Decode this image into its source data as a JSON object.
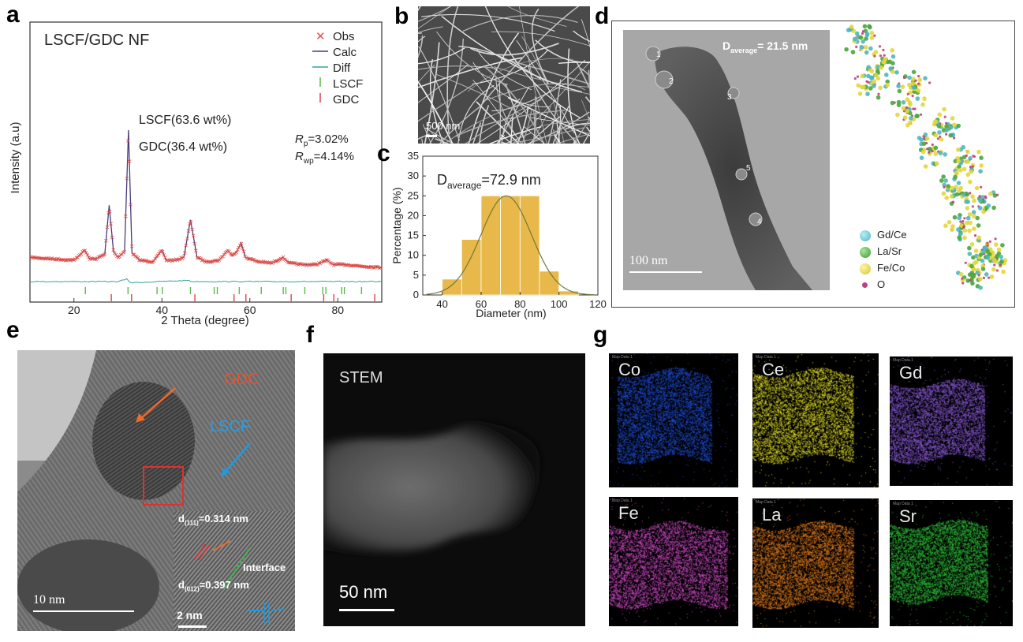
{
  "panels": {
    "a": "a",
    "b": "b",
    "c": "c",
    "d": "d",
    "e": "e",
    "f": "f",
    "g": "g"
  },
  "panel_a": {
    "sample_title": "LSCF/GDC NF",
    "legend": [
      "Obs",
      "Calc",
      "Diff",
      "LSCF",
      "GDC"
    ],
    "annotation_lscf": "LSCF(63.6 wt%)",
    "annotation_gdc": "GDC(36.4 wt%)",
    "rp_symbol": "R",
    "rp_sub": "p",
    "rp_value": "=3.02%",
    "rwp_symbol": "R",
    "rwp_sub": "wp",
    "rwp_value": "=4.14%",
    "colors": {
      "obs": "#e2504a",
      "calc": "#4a3c7c",
      "diff": "#35a39c",
      "lscf": "#5bb84b",
      "gdc": "#e0414f"
    }
  },
  "panel_b": {
    "scale_bar": "500 nm"
  },
  "panel_c": {
    "d_prefix": "D",
    "d_sub": "average",
    "d_value": "=72.9 nm"
  },
  "panel_d": {
    "d_prefix": "D",
    "d_sub": "average",
    "d_value": "= 21.5 nm",
    "scale_bar": "100 nm",
    "markers": [
      "1",
      "2",
      "3",
      "4",
      "5"
    ],
    "atom_legend": [
      {
        "label": "Gd/Ce",
        "color": "#4fb6c4"
      },
      {
        "label": "La/Sr",
        "color": "#4aa63d"
      },
      {
        "label": "Fe/Co",
        "color": "#e3d63a"
      },
      {
        "label": "O",
        "color": "#c0407a"
      }
    ]
  },
  "panel_e": {
    "label_gdc": "GDC",
    "label_lscf": "LSCF",
    "scale_bar": "10 nm",
    "inset_scale_bar": "2 nm",
    "d111_prefix": "d",
    "d111_sub": "(111)",
    "d111_value": "=0.314 nm",
    "d012_prefix": "d",
    "d012_sub": "(012)",
    "d012_value": "=0.397 nm",
    "interface": "Interface"
  },
  "panel_f": {
    "label": "STEM",
    "scale_bar": "50 nm"
  },
  "panel_g": {
    "tiles": [
      {
        "element": "Co",
        "color": "#1f4fd8"
      },
      {
        "element": "Ce",
        "color": "#e6e22a"
      },
      {
        "element": "Gd",
        "color": "#8a5ad6"
      },
      {
        "element": "Fe",
        "color": "#d84fd0"
      },
      {
        "element": "La",
        "color": "#e8801e"
      },
      {
        "element": "Sr",
        "color": "#2fc43a"
      }
    ],
    "tile_caption": "Map Data 1"
  },
  "chart_data": [
    {
      "type": "line",
      "panel": "a",
      "xlabel": "2 Theta (degree)",
      "ylabel": "Intensity (a.u)",
      "xlim": [
        10,
        90
      ],
      "xticks": [
        20,
        40,
        60,
        80
      ],
      "series": [
        {
          "name": "Calc",
          "x": [
            10,
            15,
            20,
            22.5,
            23.5,
            25,
            27,
            28,
            29,
            30,
            31.5,
            32.4,
            33.2,
            35,
            38,
            40,
            41,
            43,
            45,
            46.5,
            48,
            50,
            53,
            55,
            56,
            57,
            58,
            59,
            62,
            65,
            67.5,
            69,
            72,
            75,
            77.5,
            79,
            82,
            85,
            90
          ],
          "y": [
            0.12,
            0.11,
            0.1,
            0.17,
            0.11,
            0.11,
            0.14,
            0.48,
            0.16,
            0.12,
            0.16,
            1.0,
            0.15,
            0.1,
            0.09,
            0.17,
            0.1,
            0.1,
            0.12,
            0.38,
            0.12,
            0.09,
            0.1,
            0.17,
            0.13,
            0.16,
            0.22,
            0.12,
            0.09,
            0.08,
            0.12,
            0.08,
            0.07,
            0.07,
            0.1,
            0.07,
            0.07,
            0.06,
            0.05
          ]
        },
        {
          "name": "Diff",
          "x": [
            10,
            30,
            32,
            33,
            46,
            47,
            60,
            90
          ],
          "y": [
            0,
            0,
            0.02,
            -0.01,
            0.01,
            0,
            0,
            0
          ]
        }
      ],
      "reflection_ticks": {
        "LSCF": [
          22.6,
          32.3,
          38.9,
          40.1,
          46.5,
          51.9,
          52.6,
          57.6,
          62.6,
          67.6,
          68.2,
          72.5,
          76.6,
          77.3,
          80.9,
          81.5,
          85.4
        ],
        "GDC": [
          28.5,
          33.1,
          47.5,
          56.4,
          59.1,
          69.4,
          76.8,
          79.1,
          88.4
        ]
      }
    },
    {
      "type": "bar",
      "panel": "c",
      "xlabel": "Diameter (nm)",
      "ylabel": "Percentage (%)",
      "xlim": [
        30,
        120
      ],
      "ylim": [
        0,
        35
      ],
      "xticks": [
        40,
        60,
        80,
        100,
        120
      ],
      "yticks": [
        0,
        5,
        10,
        15,
        20,
        25,
        30,
        35
      ],
      "bin_width": 10,
      "bin_starts": [
        40,
        50,
        60,
        70,
        80,
        90,
        100
      ],
      "values": [
        4,
        14,
        25,
        25,
        25,
        6,
        1
      ],
      "fit": {
        "mean": 72.9,
        "sd": 13,
        "peak": 25
      }
    }
  ]
}
